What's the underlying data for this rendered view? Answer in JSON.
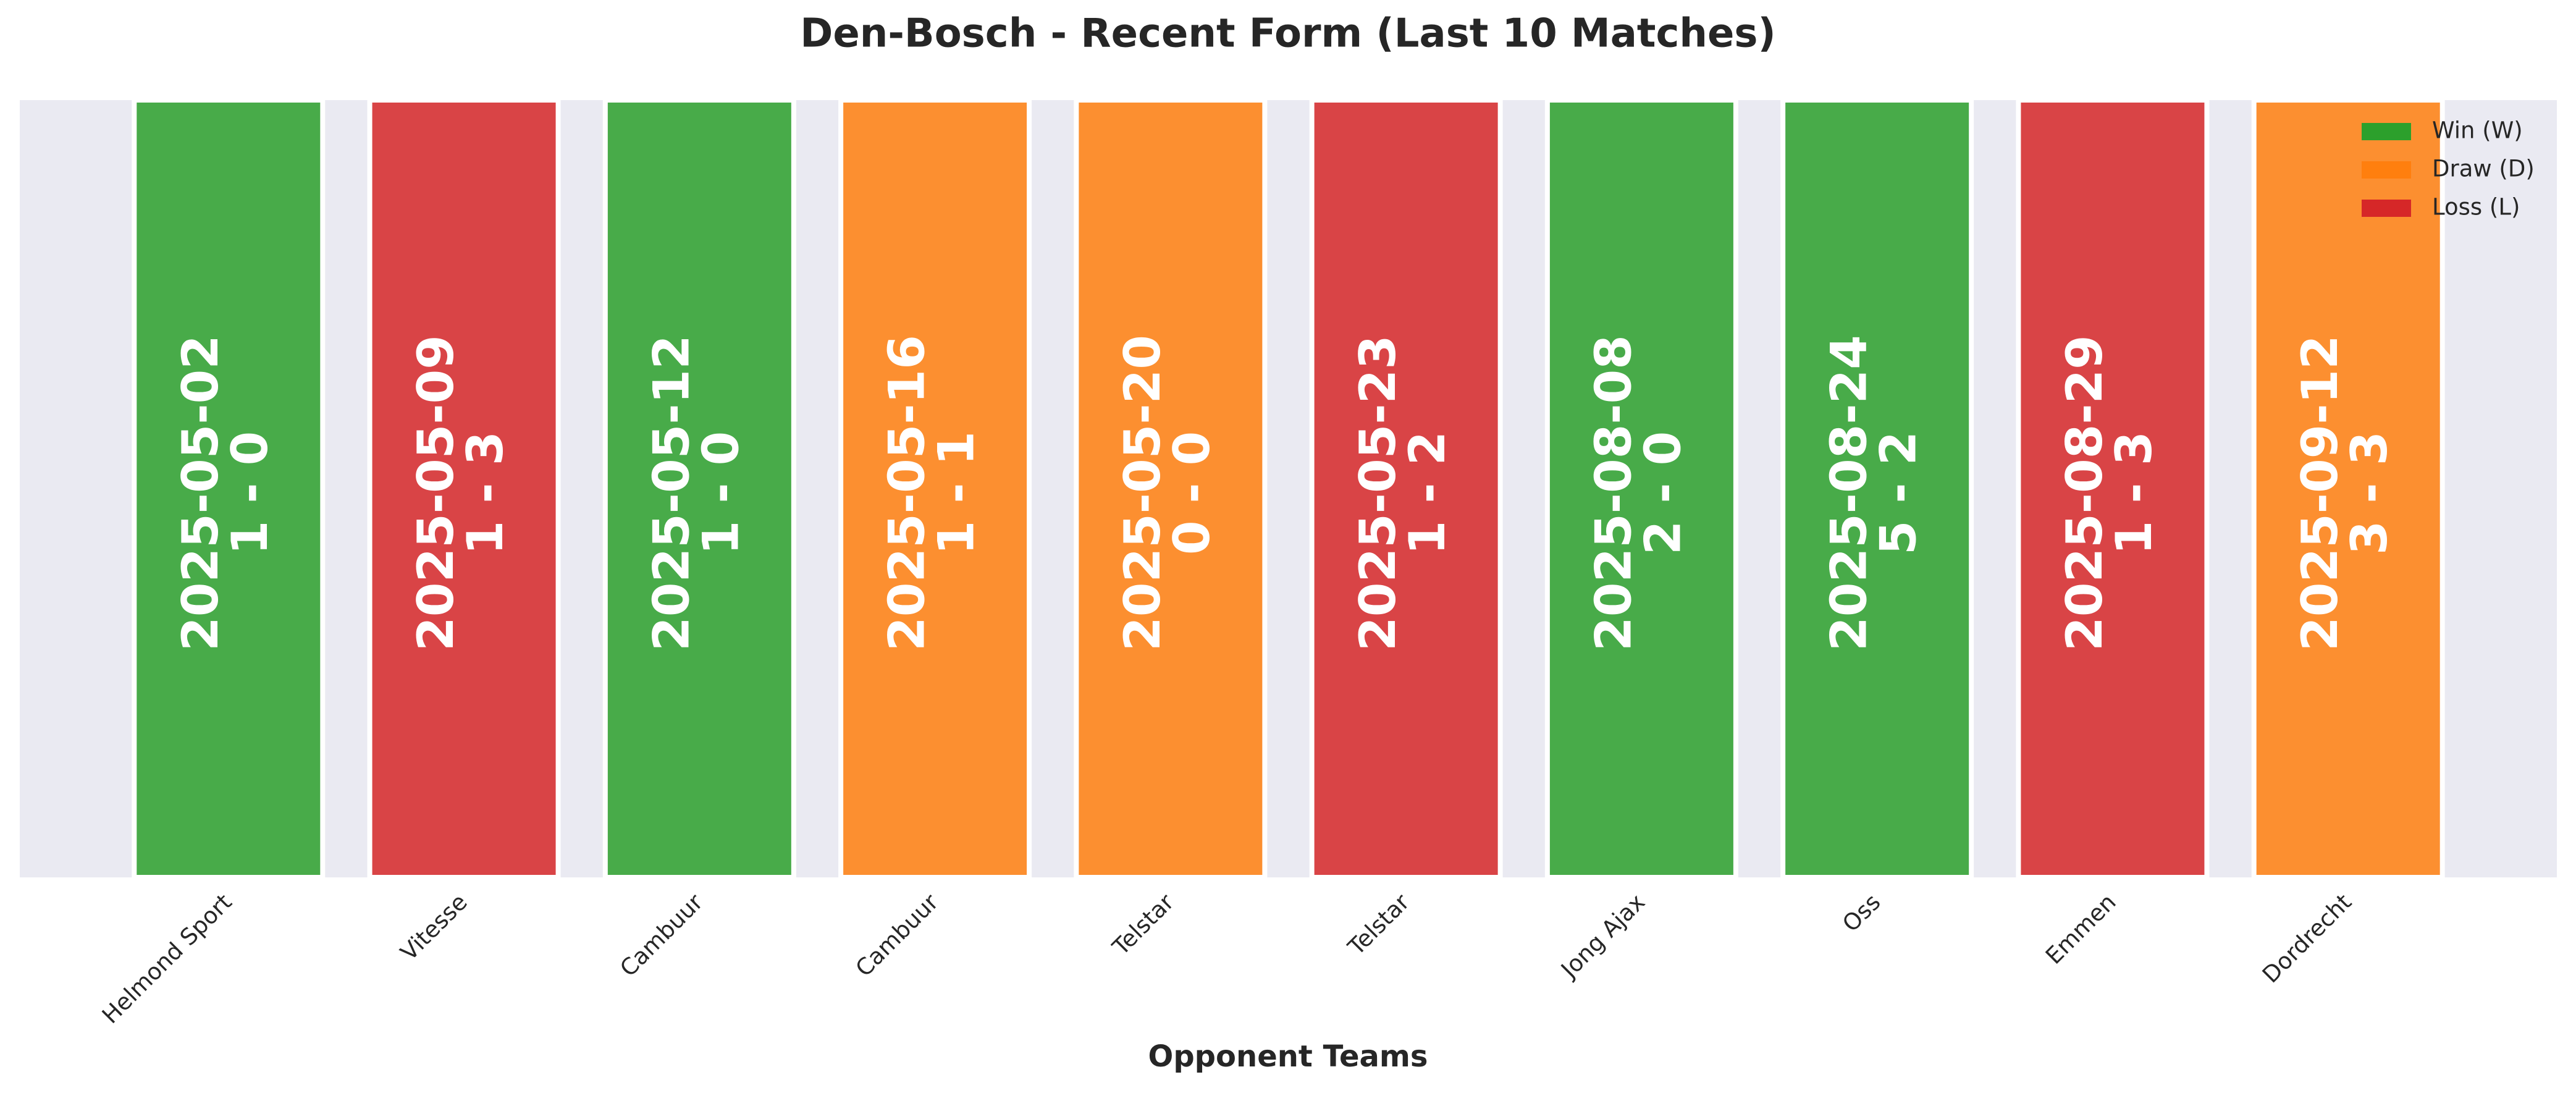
{
  "chart_data": {
    "type": "bar",
    "title": "Den-Bosch - Recent Form (Last 10 Matches)",
    "x_label": "Opponent Teams",
    "categories": [
      "Helmond Sport",
      "Vitesse",
      "Cambuur",
      "Cambuur",
      "Telstar",
      "Telstar",
      "Jong Ajax",
      "Oss",
      "Emmen",
      "Dordrecht"
    ],
    "dates": [
      "2025-05-02",
      "2025-05-09",
      "2025-05-12",
      "2025-05-16",
      "2025-05-20",
      "2025-05-23",
      "2025-08-08",
      "2025-08-24",
      "2025-08-29",
      "2025-09-12"
    ],
    "scores": [
      "1 - 0",
      "1 - 3",
      "1 - 0",
      "1 - 1",
      "0 - 0",
      "1 - 2",
      "2 - 0",
      "5 - 2",
      "1 - 3",
      "3 - 3"
    ],
    "colors": [
      "#2ca02c",
      "#d62728",
      "#2ca02c",
      "#ff7f0e",
      "#ff7f0e",
      "#d62728",
      "#2ca02c",
      "#2ca02c",
      "#d62728",
      "#ff7f0e"
    ],
    "legend_entries": [
      {
        "name": "Win (W)",
        "color": "#2ca02c"
      },
      {
        "name": "Draw (D)",
        "color": "#ff7f0e"
      },
      {
        "name": "Loss (L)",
        "color": "#d62728"
      }
    ],
    "legend_position": "upper right",
    "background": "#eaeaf2"
  }
}
